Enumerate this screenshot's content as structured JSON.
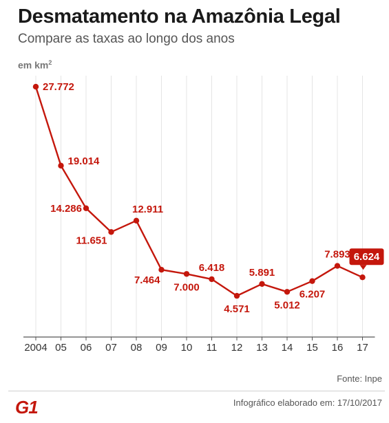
{
  "header": {
    "title": "Desmatamento na Amazônia Legal",
    "subtitle": "Compare as taxas ao longo dos anos",
    "unit_main": "em km",
    "unit_sup": "2"
  },
  "footer": {
    "source": "Fonte: Inpe",
    "credit": "Infográfico elaborado em: 17/10/2017",
    "logo": "G1"
  },
  "colors": {
    "line": "#c4170c",
    "grid": "#e4e4e4",
    "axis": "#555555",
    "highlight_bg": "#c4170c",
    "highlight_text": "#ffffff"
  },
  "chart_data": {
    "type": "line",
    "x": [
      "2004",
      "05",
      "06",
      "07",
      "08",
      "09",
      "10",
      "11",
      "12",
      "13",
      "14",
      "15",
      "16",
      "17"
    ],
    "values": [
      27772,
      19014,
      14286,
      11651,
      12911,
      7464,
      7000,
      6418,
      4571,
      5891,
      5012,
      6207,
      7893,
      6624
    ],
    "labels": [
      "27.772",
      "19.014",
      "14.286",
      "11.651",
      "12.911",
      "7.464",
      "7.000",
      "6.418",
      "4.571",
      "5.891",
      "5.012",
      "6.207",
      "7.893",
      "6.624"
    ],
    "highlight_index": 13,
    "ylim": [
      0,
      29000
    ],
    "grid": true,
    "ylabel": "em km²"
  }
}
